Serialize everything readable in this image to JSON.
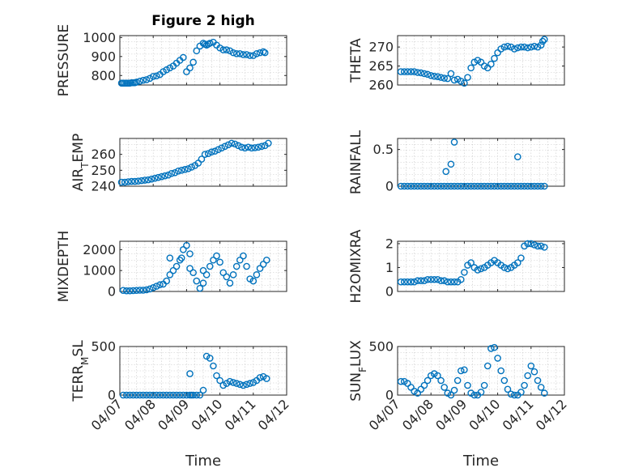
{
  "figure": {
    "title": "Figure 2 high",
    "background": "#ffffff",
    "marker_color": "#0072bd",
    "xlabel": "Time"
  },
  "chart_data": [
    {
      "type": "scatter",
      "id": "pressure",
      "ylabel": "PRESSURE",
      "ylabel_parts": [
        {
          "t": "PRESSURE"
        }
      ],
      "xlim": [
        0,
        5
      ],
      "ylim": [
        750,
        1010
      ],
      "yticks": [
        800,
        900,
        1000
      ],
      "xticks": [
        0,
        1,
        2,
        3,
        4,
        5
      ],
      "xticklabels": [
        "04/07",
        "04/08",
        "04/09",
        "04/10",
        "04/11",
        "04/12"
      ],
      "show_xticklabels": false,
      "grid": true,
      "x": [
        0.05,
        0.1,
        0.15,
        0.2,
        0.25,
        0.3,
        0.35,
        0.4,
        0.45,
        0.5,
        0.6,
        0.7,
        0.8,
        0.9,
        1.0,
        1.1,
        1.2,
        1.3,
        1.4,
        1.5,
        1.6,
        1.7,
        1.8,
        1.9,
        2.0,
        2.1,
        2.2,
        2.3,
        2.4,
        2.5,
        2.55,
        2.6,
        2.65,
        2.7,
        2.8,
        2.9,
        3.0,
        3.1,
        3.2,
        3.3,
        3.4,
        3.5,
        3.6,
        3.7,
        3.8,
        3.9,
        4.0,
        4.1,
        4.2,
        4.3,
        4.35
      ],
      "y": [
        760,
        760,
        760,
        760,
        760,
        760,
        762,
        762,
        762,
        765,
        770,
        775,
        778,
        785,
        795,
        798,
        805,
        820,
        830,
        840,
        850,
        865,
        880,
        895,
        820,
        840,
        870,
        930,
        955,
        970,
        965,
        960,
        965,
        970,
        975,
        960,
        945,
        935,
        935,
        930,
        920,
        915,
        915,
        910,
        910,
        905,
        905,
        915,
        920,
        925,
        920
      ]
    },
    {
      "type": "scatter",
      "id": "theta",
      "ylabel": "THETA",
      "ylabel_parts": [
        {
          "t": "THETA"
        }
      ],
      "xlim": [
        0,
        5
      ],
      "ylim": [
        260,
        273
      ],
      "yticks": [
        260,
        265,
        270
      ],
      "xticks": [
        0,
        1,
        2,
        3,
        4,
        5
      ],
      "xticklabels": [
        "04/07",
        "04/08",
        "04/09",
        "04/10",
        "04/11",
        "04/12"
      ],
      "show_xticklabels": false,
      "grid": true,
      "x": [
        0.1,
        0.2,
        0.3,
        0.4,
        0.5,
        0.6,
        0.7,
        0.8,
        0.9,
        1.0,
        1.1,
        1.2,
        1.3,
        1.4,
        1.5,
        1.6,
        1.7,
        1.8,
        1.9,
        2.0,
        2.1,
        2.2,
        2.3,
        2.4,
        2.5,
        2.6,
        2.7,
        2.8,
        2.9,
        3.0,
        3.1,
        3.2,
        3.3,
        3.4,
        3.5,
        3.6,
        3.7,
        3.8,
        3.9,
        4.0,
        4.1,
        4.2,
        4.3,
        4.35,
        4.4
      ],
      "y": [
        263.5,
        263.5,
        263.5,
        263.5,
        263.5,
        263.3,
        263.2,
        263.0,
        262.8,
        262.5,
        262.3,
        262.2,
        262.0,
        261.8,
        261.7,
        263.0,
        261.3,
        261.5,
        261.0,
        260.5,
        262.0,
        264.5,
        266.0,
        266.5,
        266.0,
        265.0,
        264.5,
        265.5,
        267.0,
        268.5,
        269.5,
        270.0,
        270.2,
        270.0,
        269.5,
        269.8,
        270.0,
        270.0,
        269.8,
        270.0,
        270.2,
        270.0,
        270.5,
        271.5,
        272.0
      ]
    },
    {
      "type": "scatter",
      "id": "air_temp",
      "ylabel": "AIR_TEMP",
      "ylabel_parts": [
        {
          "t": "AIR"
        },
        {
          "t": "T",
          "sub": true
        },
        {
          "t": "EMP"
        }
      ],
      "xlim": [
        0,
        5
      ],
      "ylim": [
        240,
        270
      ],
      "yticks": [
        240,
        250,
        260
      ],
      "xticks": [
        0,
        1,
        2,
        3,
        4,
        5
      ],
      "xticklabels": [
        "04/07",
        "04/08",
        "04/09",
        "04/10",
        "04/11",
        "04/12"
      ],
      "show_xticklabels": false,
      "grid": true,
      "x": [
        0.05,
        0.15,
        0.25,
        0.35,
        0.45,
        0.55,
        0.65,
        0.75,
        0.85,
        0.95,
        1.05,
        1.15,
        1.25,
        1.35,
        1.45,
        1.55,
        1.65,
        1.75,
        1.85,
        1.95,
        2.05,
        2.15,
        2.25,
        2.35,
        2.45,
        2.55,
        2.65,
        2.75,
        2.85,
        2.95,
        3.05,
        3.15,
        3.25,
        3.35,
        3.45,
        3.55,
        3.65,
        3.75,
        3.85,
        3.95,
        4.05,
        4.15,
        4.25,
        4.35,
        4.45
      ],
      "y": [
        242.5,
        242.5,
        242.8,
        243.0,
        243.0,
        243.2,
        243.5,
        243.8,
        244.0,
        244.5,
        245.0,
        245.5,
        246.0,
        246.5,
        247.0,
        248.0,
        248.5,
        249.5,
        250.0,
        250.5,
        251.0,
        252.0,
        253.0,
        254.5,
        257.0,
        260.0,
        260.5,
        261.5,
        262.0,
        263.0,
        264.0,
        265.0,
        266.0,
        267.0,
        266.5,
        265.5,
        264.5,
        264.0,
        264.5,
        264.0,
        264.2,
        264.5,
        265.0,
        265.5,
        267.0
      ]
    },
    {
      "type": "scatter",
      "id": "rainfall",
      "ylabel": "RAINFALL",
      "ylabel_parts": [
        {
          "t": "RAINFALL"
        }
      ],
      "xlim": [
        0,
        5
      ],
      "ylim": [
        0,
        0.65
      ],
      "yticks": [
        0,
        0.5
      ],
      "xticks": [
        0,
        1,
        2,
        3,
        4,
        5
      ],
      "xticklabels": [
        "04/07",
        "04/08",
        "04/09",
        "04/10",
        "04/11",
        "04/12"
      ],
      "show_xticklabels": false,
      "grid": true,
      "x": [
        0.1,
        0.2,
        0.3,
        0.4,
        0.5,
        0.6,
        0.7,
        0.8,
        0.9,
        1.0,
        1.1,
        1.2,
        1.3,
        1.4,
        1.5,
        1.6,
        1.7,
        1.8,
        1.9,
        2.0,
        2.1,
        2.2,
        2.3,
        2.4,
        2.5,
        2.6,
        2.7,
        2.8,
        2.9,
        3.0,
        3.1,
        3.2,
        3.3,
        3.4,
        3.5,
        3.6,
        3.7,
        3.8,
        3.9,
        4.0,
        4.1,
        4.2,
        4.3,
        4.4,
        1.45,
        1.6,
        1.7,
        3.6
      ],
      "y": [
        0,
        0,
        0,
        0,
        0,
        0,
        0,
        0,
        0,
        0,
        0,
        0,
        0,
        0,
        0,
        0,
        0,
        0,
        0,
        0,
        0,
        0,
        0,
        0,
        0,
        0,
        0,
        0,
        0,
        0,
        0,
        0,
        0,
        0,
        0,
        0,
        0,
        0,
        0,
        0,
        0,
        0,
        0,
        0,
        0.2,
        0.3,
        0.6,
        0.4
      ]
    },
    {
      "type": "scatter",
      "id": "mixdepth",
      "ylabel": "MIXDEPTH",
      "ylabel_parts": [
        {
          "t": "MIXDEPTH"
        }
      ],
      "xlim": [
        0,
        5
      ],
      "ylim": [
        0,
        2400
      ],
      "yticks": [
        0,
        1000,
        2000
      ],
      "xticks": [
        0,
        1,
        2,
        3,
        4,
        5
      ],
      "xticklabels": [
        "04/07",
        "04/08",
        "04/09",
        "04/10",
        "04/11",
        "04/12"
      ],
      "show_xticklabels": false,
      "grid": true,
      "x": [
        0.1,
        0.2,
        0.3,
        0.4,
        0.5,
        0.6,
        0.7,
        0.8,
        0.9,
        1.0,
        1.1,
        1.2,
        1.3,
        1.4,
        1.5,
        1.6,
        1.7,
        1.8,
        1.9,
        2.0,
        2.1,
        2.2,
        2.3,
        2.4,
        2.5,
        2.6,
        2.7,
        2.8,
        2.9,
        3.0,
        3.1,
        3.2,
        3.3,
        3.4,
        3.5,
        3.6,
        3.7,
        3.8,
        3.9,
        4.0,
        4.1,
        4.2,
        4.3,
        4.4,
        1.5,
        1.85,
        2.5,
        2.1
      ],
      "y": [
        50,
        30,
        30,
        40,
        50,
        60,
        60,
        80,
        120,
        180,
        250,
        320,
        350,
        500,
        800,
        1000,
        1200,
        1500,
        2000,
        2200,
        1100,
        900,
        500,
        150,
        400,
        800,
        1200,
        1500,
        1700,
        1400,
        900,
        700,
        400,
        800,
        1200,
        1500,
        1700,
        1200,
        600,
        500,
        800,
        1100,
        1300,
        1500,
        1600,
        1600,
        1000,
        1800
      ]
    },
    {
      "type": "scatter",
      "id": "h2omixra",
      "ylabel": "H2OMIXRA",
      "ylabel_parts": [
        {
          "t": "H2OMIXRA"
        }
      ],
      "xlim": [
        0,
        5
      ],
      "ylim": [
        0,
        2.1
      ],
      "yticks": [
        0,
        1,
        2
      ],
      "xticks": [
        0,
        1,
        2,
        3,
        4,
        5
      ],
      "xticklabels": [
        "04/07",
        "04/08",
        "04/09",
        "04/10",
        "04/11",
        "04/12"
      ],
      "show_xticklabels": false,
      "grid": true,
      "x": [
        0.1,
        0.2,
        0.3,
        0.4,
        0.5,
        0.6,
        0.7,
        0.8,
        0.9,
        1.0,
        1.1,
        1.2,
        1.3,
        1.4,
        1.5,
        1.6,
        1.7,
        1.8,
        1.9,
        2.0,
        2.1,
        2.2,
        2.3,
        2.4,
        2.5,
        2.6,
        2.7,
        2.8,
        2.9,
        3.0,
        3.1,
        3.2,
        3.3,
        3.4,
        3.5,
        3.6,
        3.7,
        3.8,
        3.9,
        4.0,
        4.1,
        4.2,
        4.3,
        4.4
      ],
      "y": [
        0.4,
        0.4,
        0.4,
        0.4,
        0.4,
        0.45,
        0.45,
        0.45,
        0.5,
        0.5,
        0.5,
        0.5,
        0.45,
        0.45,
        0.4,
        0.4,
        0.4,
        0.4,
        0.5,
        0.8,
        1.1,
        1.2,
        1.0,
        0.9,
        0.95,
        1.0,
        1.1,
        1.2,
        1.3,
        1.2,
        1.1,
        1.0,
        0.95,
        1.0,
        1.1,
        1.2,
        1.4,
        1.9,
        2.0,
        2.0,
        1.95,
        1.9,
        1.9,
        1.85
      ]
    },
    {
      "type": "scatter",
      "id": "terr_msl",
      "ylabel": "TERR_MSL",
      "ylabel_parts": [
        {
          "t": "TERR"
        },
        {
          "t": "M",
          "sub": true
        },
        {
          "t": "SL"
        }
      ],
      "xlim": [
        0,
        5
      ],
      "ylim": [
        0,
        500
      ],
      "yticks": [
        0,
        500
      ],
      "xticks": [
        0,
        1,
        2,
        3,
        4,
        5
      ],
      "xticklabels": [
        "04/07",
        "04/08",
        "04/09",
        "04/10",
        "04/11",
        "04/12"
      ],
      "show_xticklabels": true,
      "grid": true,
      "x": [
        0.1,
        0.2,
        0.3,
        0.4,
        0.5,
        0.6,
        0.7,
        0.8,
        0.9,
        1.0,
        1.1,
        1.2,
        1.3,
        1.4,
        1.5,
        1.6,
        1.7,
        1.8,
        1.9,
        2.0,
        2.1,
        2.2,
        2.3,
        2.4,
        2.5,
        2.6,
        2.7,
        2.8,
        2.9,
        3.0,
        3.1,
        3.2,
        3.3,
        3.4,
        3.5,
        3.6,
        3.7,
        3.8,
        3.9,
        4.0,
        4.1,
        4.2,
        4.3,
        4.4,
        2.1,
        2.15
      ],
      "y": [
        0,
        0,
        0,
        0,
        0,
        0,
        0,
        0,
        0,
        0,
        0,
        0,
        0,
        0,
        0,
        0,
        0,
        0,
        0,
        0,
        0,
        0,
        0,
        0,
        50,
        400,
        380,
        300,
        200,
        150,
        100,
        120,
        140,
        130,
        120,
        110,
        100,
        110,
        120,
        130,
        150,
        180,
        190,
        170,
        220,
        0
      ]
    },
    {
      "type": "scatter",
      "id": "sun_flux",
      "ylabel": "SUN_FLUX",
      "ylabel_parts": [
        {
          "t": "SUN"
        },
        {
          "t": "F",
          "sub": true
        },
        {
          "t": "LUX"
        }
      ],
      "xlim": [
        0,
        5
      ],
      "ylim": [
        0,
        500
      ],
      "yticks": [
        0,
        500
      ],
      "xticks": [
        0,
        1,
        2,
        3,
        4,
        5
      ],
      "xticklabels": [
        "04/07",
        "04/08",
        "04/09",
        "04/10",
        "04/11",
        "04/12"
      ],
      "show_xticklabels": true,
      "grid": true,
      "x": [
        0.1,
        0.2,
        0.3,
        0.4,
        0.5,
        0.6,
        0.7,
        0.8,
        0.9,
        1.0,
        1.1,
        1.2,
        1.3,
        1.4,
        1.5,
        1.6,
        1.7,
        1.8,
        1.9,
        2.0,
        2.1,
        2.2,
        2.3,
        2.4,
        2.5,
        2.6,
        2.7,
        2.8,
        2.9,
        3.0,
        3.1,
        3.2,
        3.3,
        3.4,
        3.5,
        3.6,
        3.7,
        3.8,
        3.9,
        4.0,
        4.1,
        4.2,
        4.3,
        4.4
      ],
      "y": [
        140,
        140,
        120,
        80,
        40,
        20,
        60,
        100,
        150,
        200,
        220,
        200,
        150,
        80,
        20,
        0,
        50,
        150,
        250,
        260,
        100,
        20,
        0,
        0,
        30,
        100,
        300,
        480,
        490,
        380,
        250,
        150,
        60,
        10,
        0,
        0,
        30,
        100,
        200,
        300,
        240,
        150,
        80,
        20
      ]
    }
  ]
}
